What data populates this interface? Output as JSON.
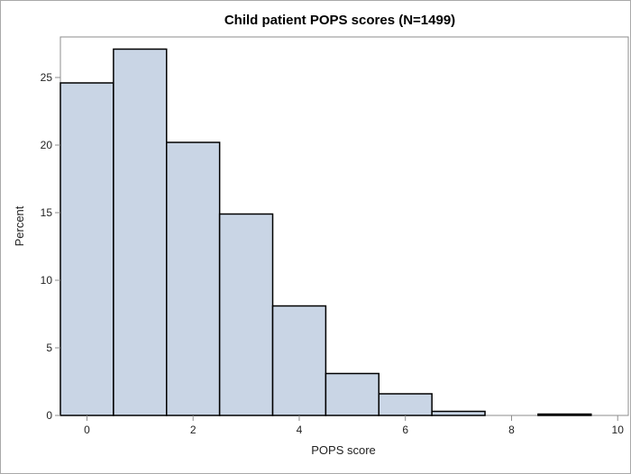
{
  "chart_data": {
    "type": "bar",
    "title": "Child patient POPS scores (N=1499)",
    "xlabel": "POPS score",
    "ylabel": "Percent",
    "xlim": [
      -0.5,
      10.2
    ],
    "ylim": [
      0,
      28
    ],
    "xticks": [
      0,
      2,
      4,
      6,
      8,
      10
    ],
    "yticks": [
      0,
      5,
      10,
      15,
      20,
      25
    ],
    "bin_width": 1,
    "bins": [
      {
        "center": 0,
        "value": 24.6
      },
      {
        "center": 1,
        "value": 27.1
      },
      {
        "center": 2,
        "value": 20.2
      },
      {
        "center": 3,
        "value": 14.9
      },
      {
        "center": 4,
        "value": 8.1
      },
      {
        "center": 5,
        "value": 3.1
      },
      {
        "center": 6,
        "value": 1.6
      },
      {
        "center": 7,
        "value": 0.3
      },
      {
        "center": 8,
        "value": 0.0
      },
      {
        "center": 9,
        "value": 0.1
      }
    ],
    "colors": {
      "bar_fill": "#c9d5e5",
      "bar_stroke": "#000000",
      "axes": "#8c8c8c"
    },
    "grid": false
  }
}
